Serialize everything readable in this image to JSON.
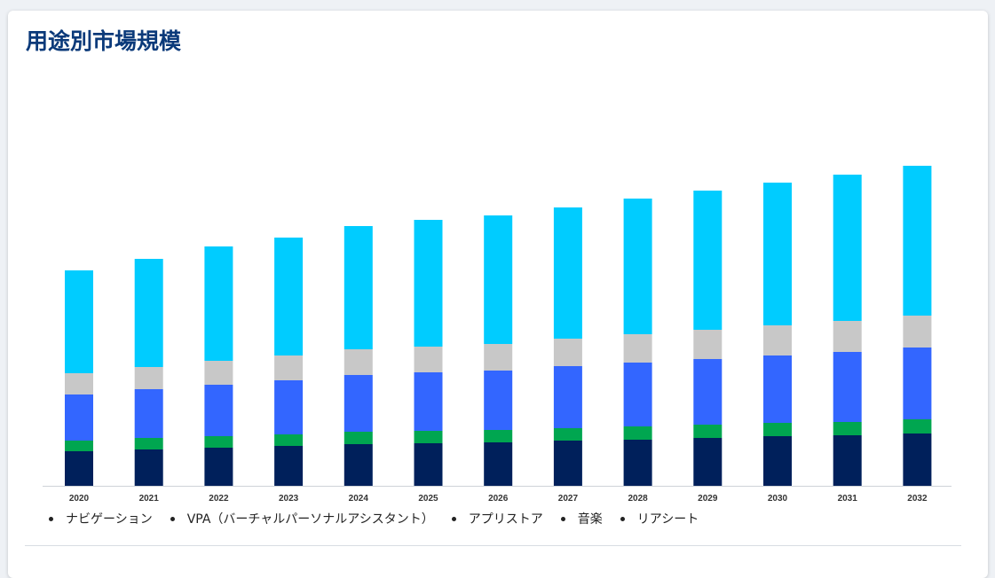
{
  "title": "用途別市場規模",
  "chart_data": {
    "type": "bar",
    "stacked": true,
    "categories": [
      "2020",
      "2021",
      "2022",
      "2023",
      "2024",
      "2025",
      "2026",
      "2027",
      "2028",
      "2029",
      "2030",
      "2031",
      "2032"
    ],
    "series": [
      {
        "name": "ナビゲーション",
        "color": "#00205b",
        "values": [
          39,
          41,
          43,
          45,
          47,
          48,
          49,
          51,
          52,
          54,
          56,
          57,
          59
        ]
      },
      {
        "name": "VPA（バーチャルパーソナルアシスタント）",
        "color": "#00a650",
        "values": [
          12,
          13,
          13,
          13,
          14,
          14,
          14,
          14,
          15,
          15,
          15,
          15,
          16
        ]
      },
      {
        "name": "アプリストア",
        "color": "#3366ff",
        "values": [
          52,
          55,
          58,
          61,
          64,
          66,
          67,
          70,
          72,
          74,
          76,
          79,
          81
        ]
      },
      {
        "name": "音楽",
        "color": "#c8c8c8",
        "values": [
          24,
          25,
          27,
          28,
          29,
          29,
          30,
          31,
          32,
          33,
          34,
          35,
          36
        ]
      },
      {
        "name": "リアシート",
        "color": "#00ccff",
        "values": [
          116,
          122,
          129,
          133,
          139,
          143,
          145,
          148,
          153,
          157,
          161,
          165,
          169
        ]
      }
    ],
    "y_visible": false,
    "grid": false,
    "legend_position": "bottom"
  },
  "legend": [
    "ナビゲーション",
    "VPA（バーチャルパーソナルアシスタント）",
    "アプリストア",
    "音楽",
    "リアシート"
  ]
}
